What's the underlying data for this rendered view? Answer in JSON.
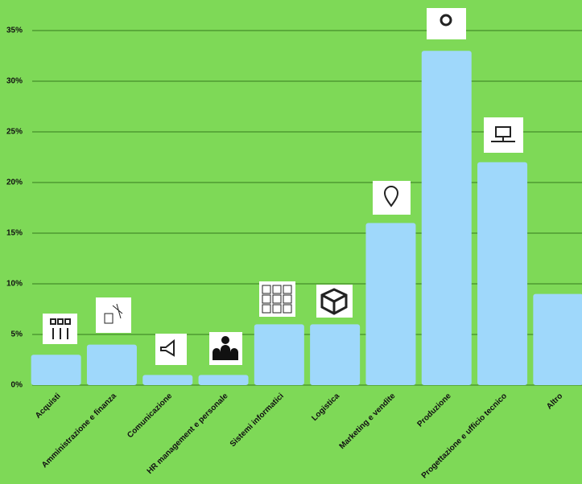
{
  "chart_data": {
    "type": "bar",
    "categories": [
      "Acquisti",
      "Amministrazione e finanza",
      "Comunicazione",
      "HR management e personale",
      "Sistemi informatici",
      "Logistica",
      "Marketing e vendite",
      "Produzione",
      "Progettazione e ufficio tecnico",
      "Altro"
    ],
    "values": [
      3,
      4,
      1,
      1,
      6,
      6,
      16,
      33,
      22,
      9
    ],
    "color": "#9fd8fb",
    "ylim": [
      0,
      35
    ],
    "yticks": [
      {
        "value": 0,
        "label": "0%"
      },
      {
        "value": 5,
        "label": "5%"
      },
      {
        "value": 10,
        "label": "10%"
      },
      {
        "value": 15,
        "label": "15%"
      },
      {
        "value": 20,
        "label": "20%"
      },
      {
        "value": 25,
        "label": "25%"
      },
      {
        "value": 30,
        "label": "30%"
      },
      {
        "value": 35,
        "label": "35%"
      }
    ],
    "grid": true
  }
}
